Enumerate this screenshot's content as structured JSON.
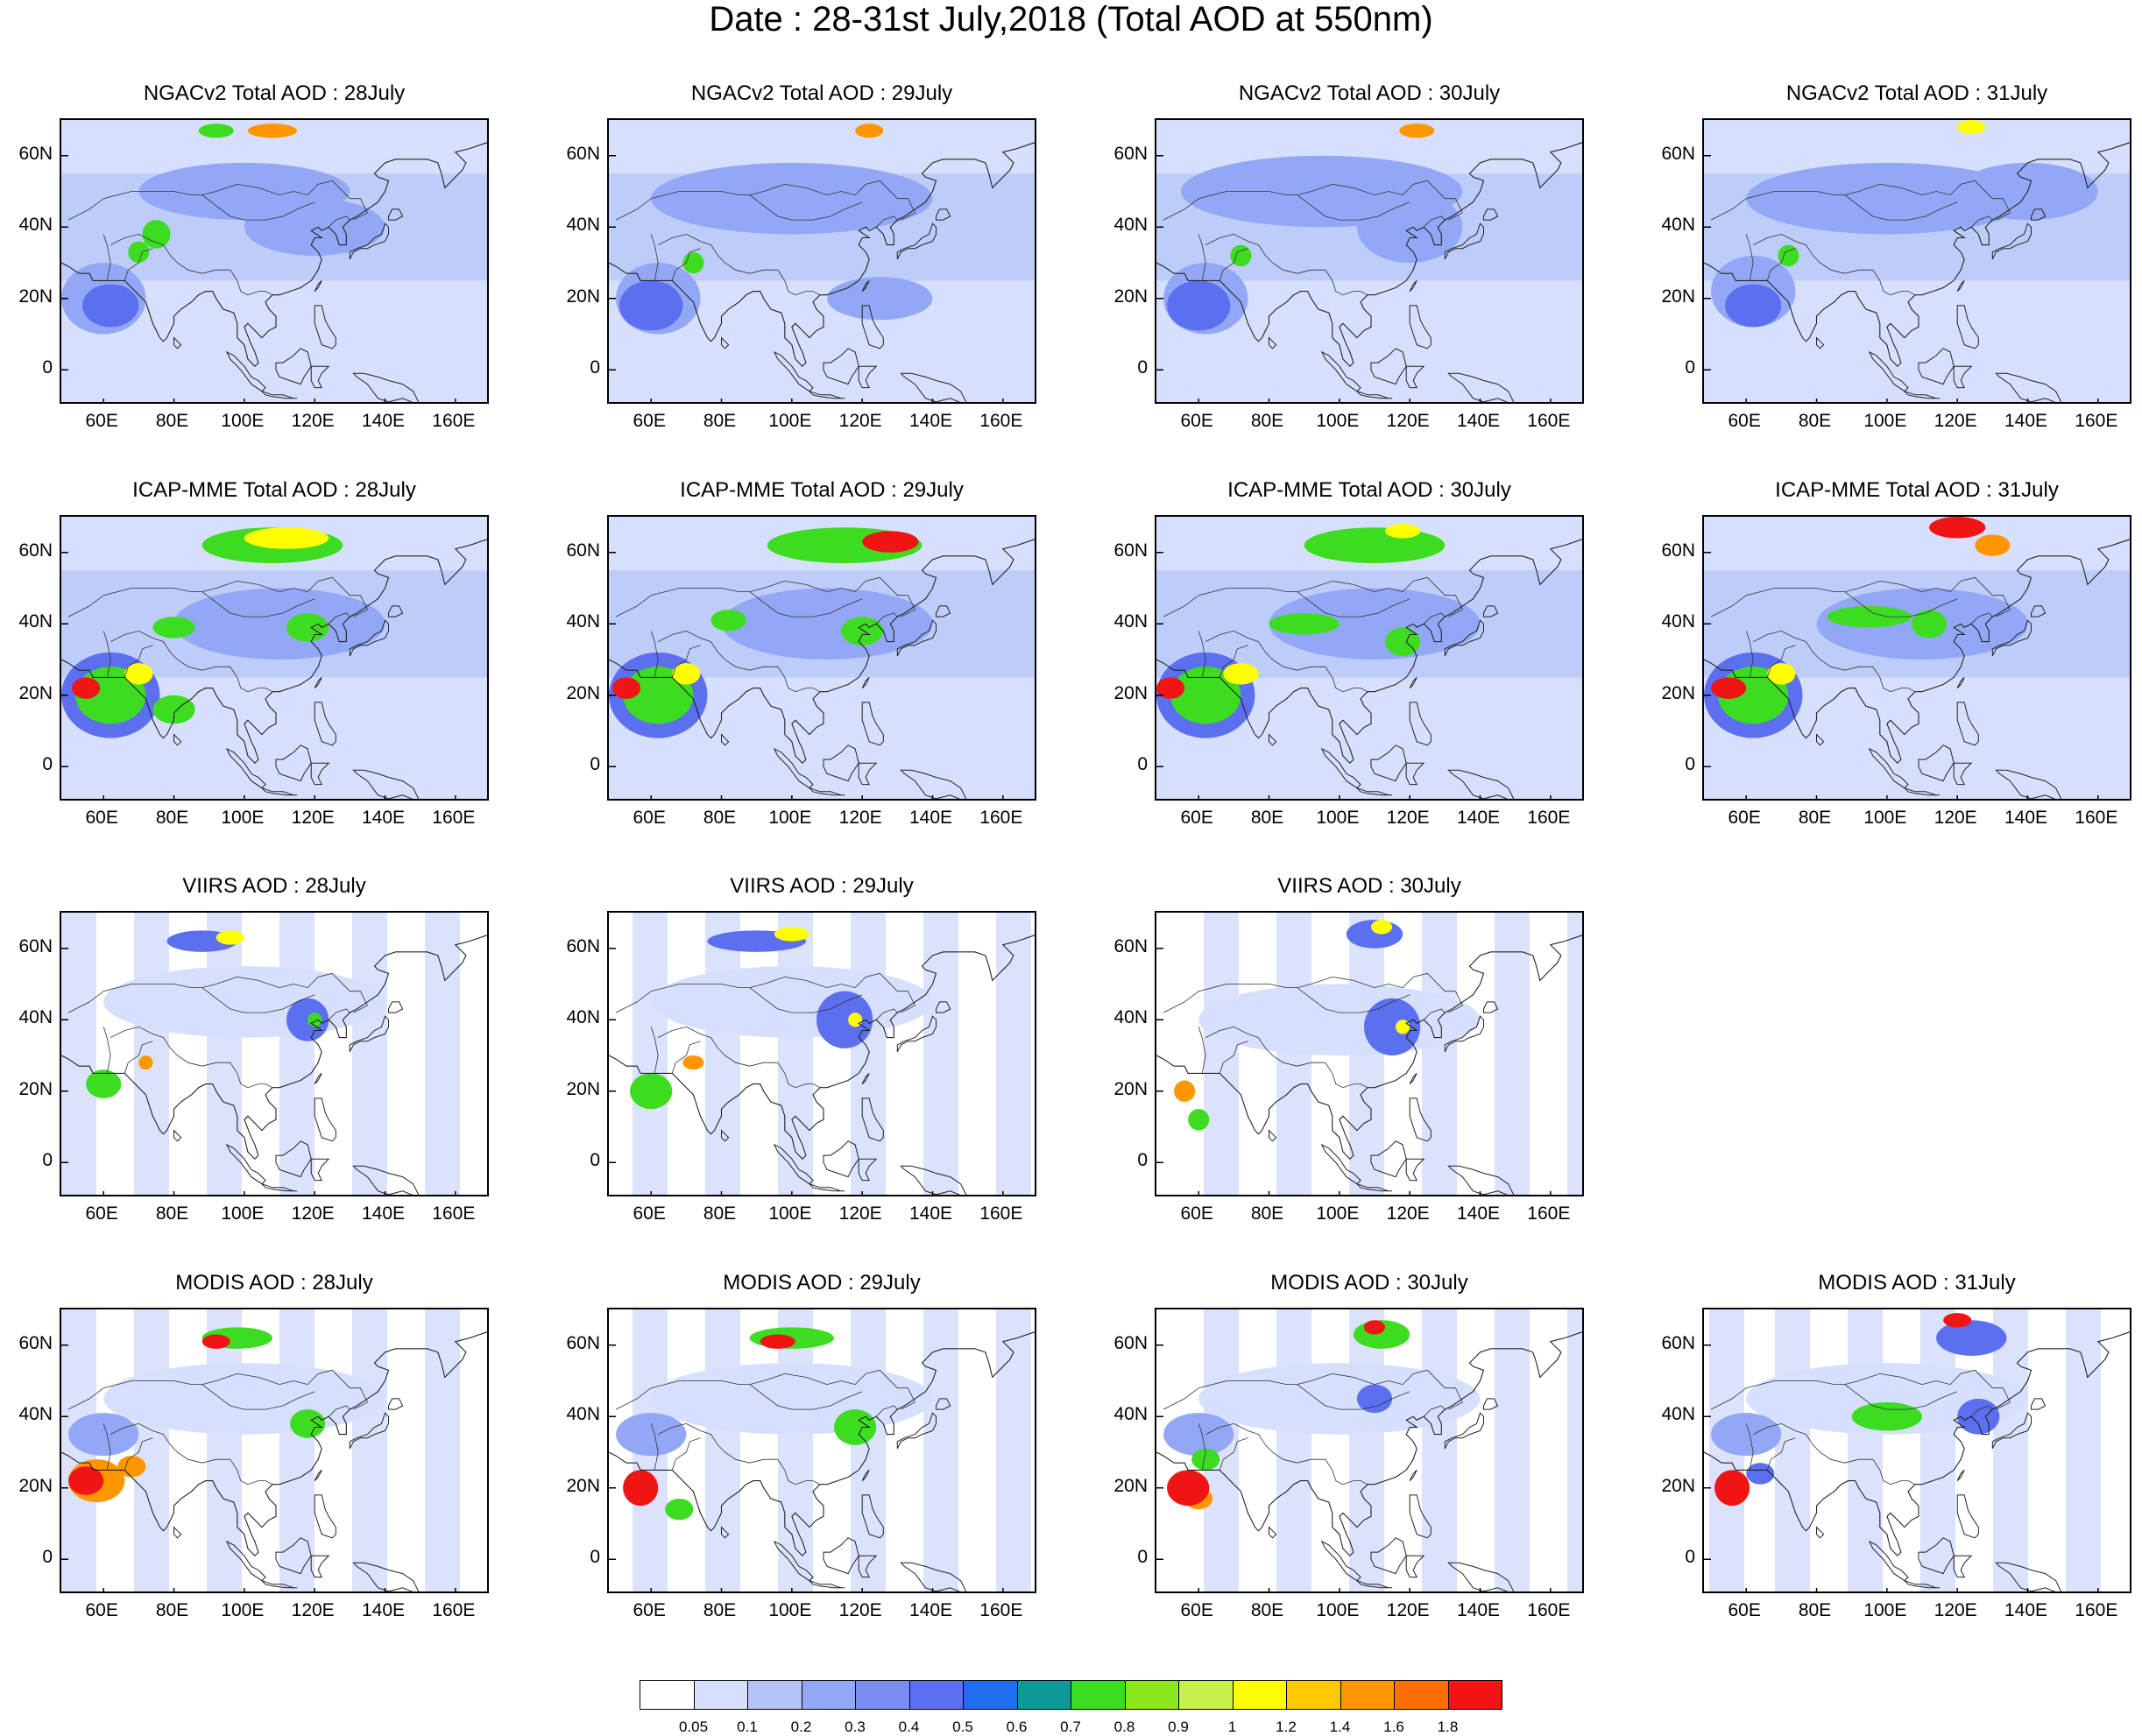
{
  "title": "Date : 28-31st July,2018 (Total AOD at 550nm)",
  "map_extent": {
    "lon_min": 48,
    "lon_max": 170,
    "lat_min": -10,
    "lat_max": 70
  },
  "x_ticks": [
    "60E",
    "80E",
    "100E",
    "120E",
    "140E",
    "160E"
  ],
  "x_tick_lons": [
    60,
    80,
    100,
    120,
    140,
    160
  ],
  "y_ticks": [
    "60N",
    "40N",
    "20N",
    "0"
  ],
  "y_tick_lats": [
    60,
    40,
    20,
    0
  ],
  "rows": [
    {
      "dataset": "NGACv2",
      "panels": [
        {
          "title": "NGACv2 Total AOD : 28July",
          "present": true
        },
        {
          "title": "NGACv2 Total AOD : 29July",
          "present": true
        },
        {
          "title": "NGACv2 Total AOD : 30July",
          "present": true
        },
        {
          "title": "NGACv2 Total AOD : 31July",
          "present": true
        }
      ]
    },
    {
      "dataset": "ICAP-MME",
      "panels": [
        {
          "title": "ICAP-MME Total AOD : 28July",
          "present": true
        },
        {
          "title": "ICAP-MME Total AOD : 29July",
          "present": true
        },
        {
          "title": "ICAP-MME Total AOD : 30July",
          "present": true
        },
        {
          "title": "ICAP-MME Total AOD : 31July",
          "present": true
        }
      ]
    },
    {
      "dataset": "VIIRS",
      "panels": [
        {
          "title": "VIIRS AOD : 28July",
          "present": true
        },
        {
          "title": "VIIRS AOD : 29July",
          "present": true
        },
        {
          "title": "VIIRS AOD : 30July",
          "present": true
        },
        {
          "title": "",
          "present": false
        }
      ]
    },
    {
      "dataset": "MODIS",
      "panels": [
        {
          "title": "MODIS AOD : 28July",
          "present": true
        },
        {
          "title": "MODIS AOD : 29July",
          "present": true
        },
        {
          "title": "MODIS AOD : 30July",
          "present": true
        },
        {
          "title": "MODIS AOD : 31July",
          "present": true
        }
      ]
    }
  ],
  "colorbar": {
    "labels": [
      "0.05",
      "0.1",
      "0.2",
      "0.3",
      "0.4",
      "0.5",
      "0.6",
      "0.7",
      "0.8",
      "0.9",
      "1",
      "1.2",
      "1.4",
      "1.6",
      "1.8"
    ],
    "colors": [
      "#ffffff",
      "#d6dffc",
      "#b4c4f8",
      "#92a8f6",
      "#7a8ef2",
      "#5b6ff0",
      "#1f6cf0",
      "#0f9898",
      "#3ddc21",
      "#8ce81e",
      "#c8f04c",
      "#ffff00",
      "#ffc800",
      "#ff9600",
      "#ff6e00",
      "#f01414"
    ]
  },
  "plume_colors": {
    "background_low": "#d6dffc",
    "moderate": "#92a8f6",
    "high": "#5b6ff0",
    "green": "#3ddc21",
    "yellow": "#ffff00",
    "orange": "#ff9600",
    "red": "#f01414"
  }
}
